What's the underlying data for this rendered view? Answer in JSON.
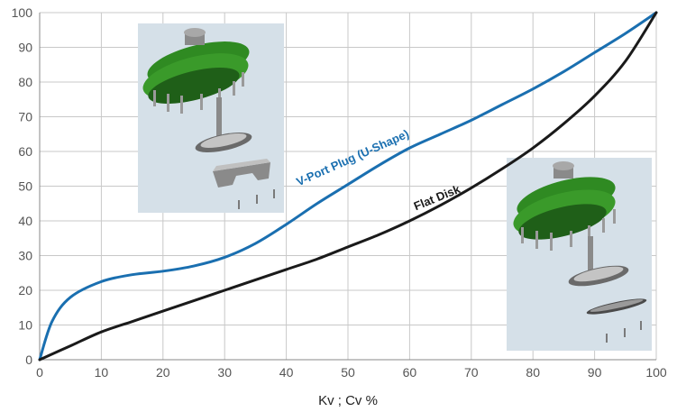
{
  "chart_data": {
    "type": "line",
    "title": "",
    "xlabel": "Kv ; Cv %",
    "ylabel": "",
    "xlim": [
      0,
      100
    ],
    "ylim": [
      0,
      100
    ],
    "x_ticks": [
      "0",
      "10",
      "20",
      "30",
      "40",
      "50",
      "60",
      "70",
      "80",
      "90",
      "100"
    ],
    "y_ticks": [
      "0",
      "10",
      "20",
      "30",
      "40",
      "50",
      "60",
      "70",
      "80",
      "90",
      "100"
    ],
    "grid": true,
    "series": [
      {
        "name": "V-Port Plug (U-Shape)",
        "color": "#1a6fb0",
        "points": [
          [
            0,
            0
          ],
          [
            2,
            11
          ],
          [
            5,
            18
          ],
          [
            10,
            22.5
          ],
          [
            15,
            24.5
          ],
          [
            20,
            25.5
          ],
          [
            25,
            27
          ],
          [
            30,
            29.5
          ],
          [
            35,
            33.5
          ],
          [
            40,
            39
          ],
          [
            45,
            45
          ],
          [
            50,
            50.5
          ],
          [
            55,
            56
          ],
          [
            60,
            61
          ],
          [
            65,
            65
          ],
          [
            70,
            69
          ],
          [
            75,
            73.5
          ],
          [
            80,
            78
          ],
          [
            85,
            83
          ],
          [
            90,
            88.5
          ],
          [
            95,
            94
          ],
          [
            100,
            100
          ]
        ]
      },
      {
        "name": "Flat Disk",
        "color": "#1a1a1a",
        "points": [
          [
            0,
            0
          ],
          [
            5,
            4
          ],
          [
            10,
            8
          ],
          [
            15,
            11
          ],
          [
            20,
            14
          ],
          [
            25,
            17
          ],
          [
            30,
            20
          ],
          [
            35,
            23
          ],
          [
            40,
            26
          ],
          [
            45,
            29
          ],
          [
            50,
            32.5
          ],
          [
            55,
            36
          ],
          [
            60,
            40
          ],
          [
            65,
            44.5
          ],
          [
            70,
            49.5
          ],
          [
            75,
            55
          ],
          [
            80,
            61
          ],
          [
            85,
            68
          ],
          [
            90,
            76
          ],
          [
            95,
            86
          ],
          [
            100,
            100
          ]
        ]
      }
    ],
    "images": [
      {
        "name": "v-port-plug-valve-illustration",
        "description_icon": "exploded-valve-with-u-shape-plug"
      },
      {
        "name": "flat-disk-valve-illustration",
        "description_icon": "exploded-valve-with-flat-disk"
      }
    ],
    "colors": {
      "grid": "#c8c8c8",
      "axis": "#888888",
      "image_bg": "#d5e0e8",
      "valve_green": "#3a9a2a",
      "valve_dark_green": "#1f5f18",
      "metal": "#b8b8b8"
    }
  }
}
